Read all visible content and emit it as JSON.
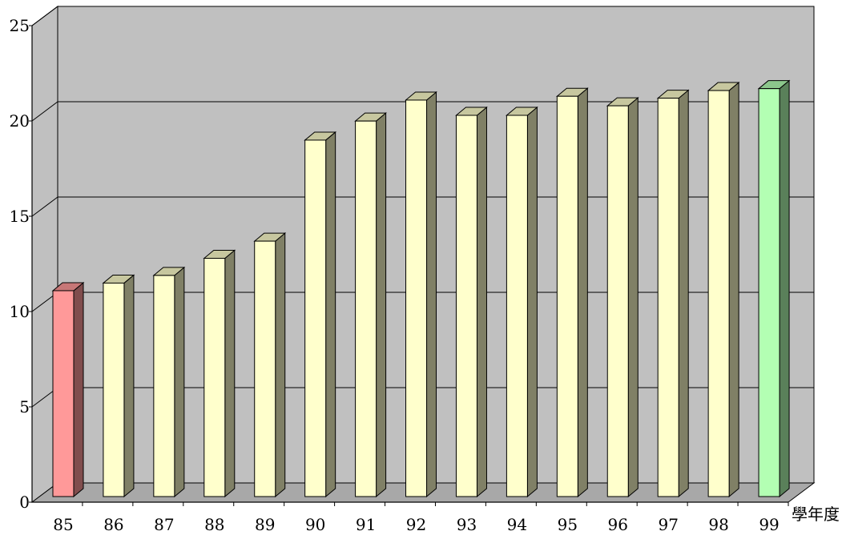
{
  "chart_data": {
    "type": "bar",
    "style": "3d-column",
    "categories": [
      "85",
      "86",
      "87",
      "88",
      "89",
      "90",
      "91",
      "92",
      "93",
      "94",
      "95",
      "96",
      "97",
      "98",
      "99"
    ],
    "values": [
      10.8,
      11.2,
      11.6,
      12.5,
      13.4,
      18.7,
      19.7,
      20.8,
      20.0,
      20.0,
      21.0,
      20.5,
      20.9,
      21.3,
      21.4
    ],
    "bar_colors": [
      "#ff9999",
      "#ffffcc",
      "#ffffcc",
      "#ffffcc",
      "#ffffcc",
      "#ffffcc",
      "#ffffcc",
      "#ffffcc",
      "#ffffcc",
      "#ffffcc",
      "#ffffcc",
      "#ffffcc",
      "#ffffcc",
      "#ffffcc",
      "#b3ffb3"
    ],
    "highlight": {
      "first_bar": "#ff9999",
      "last_bar": "#b3ffb3",
      "other_bars": "#ffffcc"
    },
    "plot_background": "#c0c0c0",
    "ylim": [
      0,
      25
    ],
    "yticks": [
      "0",
      "5",
      "10",
      "15",
      "20",
      "25"
    ],
    "xlabel": "學年度",
    "ylabel": "",
    "title": "",
    "grid": true
  }
}
